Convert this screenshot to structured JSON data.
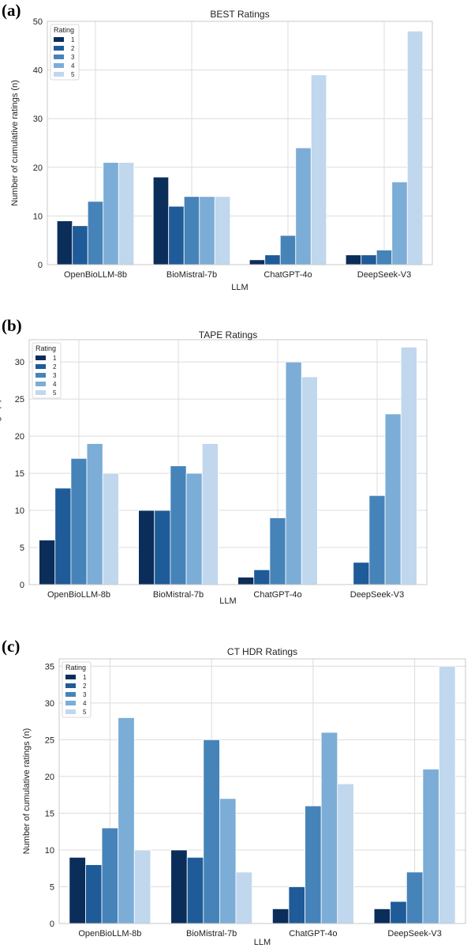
{
  "colors": {
    "rating_1": "#0b2d5a",
    "rating_2": "#1e5b98",
    "rating_3": "#4683b9",
    "rating_4": "#7badd6",
    "rating_5": "#c0d7ee",
    "grid": "#dcdcdc",
    "frame": "#c8c8c8"
  },
  "chart_data": [
    {
      "type": "bar",
      "panel_label": "(a)",
      "title": "BEST Ratings",
      "xlabel": "LLM",
      "ylabel": "Number of cumulative ratings (n)",
      "categories": [
        "OpenBioLLM-8b",
        "BioMistral-7b",
        "ChatGPT-4o",
        "DeepSeek-V3"
      ],
      "ylim": [
        0,
        50
      ],
      "yticks": [
        0,
        10,
        20,
        30,
        40,
        50
      ],
      "grid": true,
      "legend": {
        "title": "Rating",
        "placement": "top-left",
        "entries": [
          "1",
          "2",
          "3",
          "4",
          "5"
        ]
      },
      "series": [
        {
          "name": "1",
          "values": [
            9,
            18,
            1,
            2
          ]
        },
        {
          "name": "2",
          "values": [
            8,
            12,
            2,
            2
          ]
        },
        {
          "name": "3",
          "values": [
            13,
            14,
            6,
            3
          ]
        },
        {
          "name": "4",
          "values": [
            21,
            14,
            24,
            17
          ]
        },
        {
          "name": "5",
          "values": [
            21,
            14,
            39,
            48
          ]
        }
      ]
    },
    {
      "type": "bar",
      "panel_label": "(b)",
      "title": "TAPE Ratings",
      "xlabel": "LLM",
      "ylabel": "Number of cumulative ratings (n)",
      "categories": [
        "OpenBioLLM-8b",
        "BioMistral-7b",
        "ChatGPT-4o",
        "DeepSeek-V3"
      ],
      "ylim": [
        0,
        33
      ],
      "yticks": [
        0,
        5,
        10,
        15,
        20,
        25,
        30
      ],
      "grid": true,
      "legend": {
        "title": "Rating",
        "placement": "top-left",
        "entries": [
          "1",
          "2",
          "3",
          "4",
          "5"
        ]
      },
      "series": [
        {
          "name": "1",
          "values": [
            6,
            10,
            1,
            0
          ]
        },
        {
          "name": "2",
          "values": [
            13,
            10,
            2,
            3
          ]
        },
        {
          "name": "3",
          "values": [
            17,
            16,
            9,
            12
          ]
        },
        {
          "name": "4",
          "values": [
            19,
            15,
            30,
            23
          ]
        },
        {
          "name": "5",
          "values": [
            15,
            19,
            28,
            32
          ]
        }
      ]
    },
    {
      "type": "bar",
      "panel_label": "(c)",
      "title": "CT HDR Ratings",
      "xlabel": "LLM",
      "ylabel": "Number of cumulative ratings (n)",
      "categories": [
        "OpenBioLLM-8b",
        "BioMistral-7b",
        "ChatGPT-4o",
        "DeepSeek-V3"
      ],
      "ylim": [
        0,
        36
      ],
      "yticks": [
        0,
        5,
        10,
        15,
        20,
        25,
        30,
        35
      ],
      "grid": true,
      "legend": {
        "title": "Rating",
        "placement": "top-left",
        "entries": [
          "1",
          "2",
          "3",
          "4",
          "5"
        ]
      },
      "series": [
        {
          "name": "1",
          "values": [
            9,
            10,
            2,
            2
          ]
        },
        {
          "name": "2",
          "values": [
            8,
            9,
            5,
            3
          ]
        },
        {
          "name": "3",
          "values": [
            13,
            25,
            16,
            7
          ]
        },
        {
          "name": "4",
          "values": [
            28,
            17,
            26,
            21
          ]
        },
        {
          "name": "5",
          "values": [
            10,
            7,
            19,
            35
          ]
        }
      ]
    }
  ]
}
